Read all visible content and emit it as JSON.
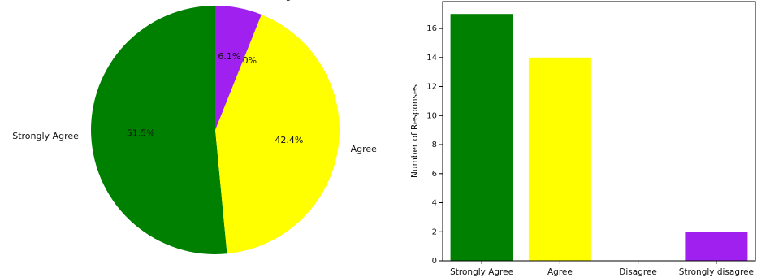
{
  "chart_data": [
    {
      "type": "pie",
      "title": "",
      "labels": [
        "Strongly Agree",
        "Agree",
        "Disagree",
        "Strongly disagree"
      ],
      "values": [
        17,
        14,
        0,
        2
      ],
      "percent_labels": [
        "51.5%",
        "42.4%",
        "0.0%",
        "6.1%"
      ],
      "colors": [
        "#008000",
        "#ffff00",
        "#ff0000",
        "#a020f0"
      ],
      "start_angle_deg": 90,
      "direction": "counterclockwise",
      "legend": "none"
    },
    {
      "type": "bar",
      "title": "",
      "categories": [
        "Strongly Agree",
        "Agree",
        "Disagree",
        "Strongly disagree"
      ],
      "values": [
        17,
        14,
        0,
        2
      ],
      "colors": [
        "#008000",
        "#ffff00",
        "#ff0000",
        "#a020f0"
      ],
      "xlabel": "",
      "ylabel": "Number of Responses",
      "ylim": [
        0,
        17.85
      ],
      "yticks": [
        0,
        2,
        4,
        6,
        8,
        10,
        12,
        14,
        16
      ],
      "grid": false,
      "legend": "none"
    }
  ]
}
